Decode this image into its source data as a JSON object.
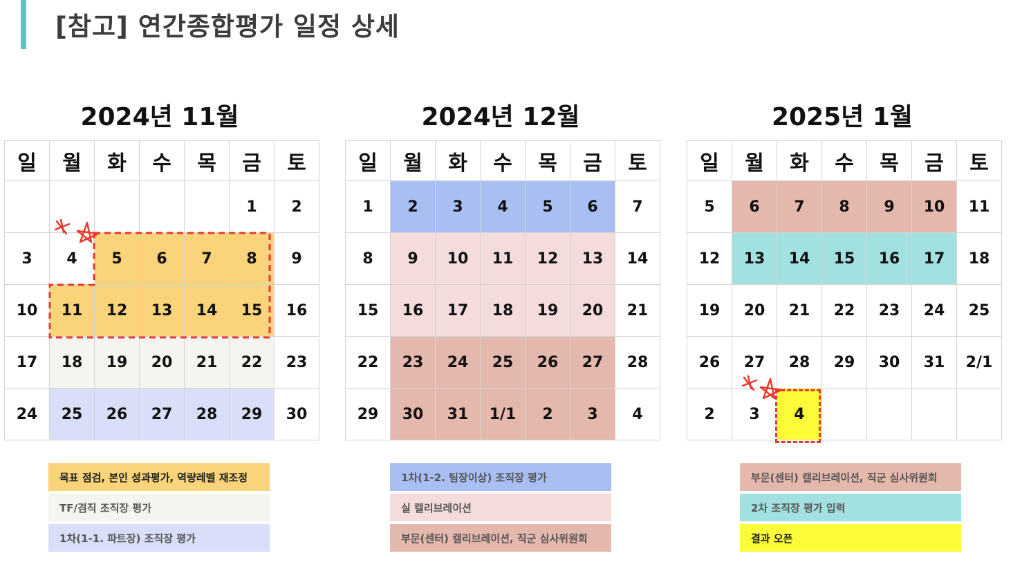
{
  "title": "[참고] 연간종합평가 일정 상세",
  "weekdays": [
    "일",
    "월",
    "화",
    "수",
    "목",
    "금",
    "토"
  ],
  "colors": {
    "yellow": "#f9d47a",
    "gray": "#f3f5ee",
    "lavender": "#d9dff8",
    "blue": "#a9bff2",
    "pink": "#f4dcdc",
    "rose": "#e5b8ad",
    "teal": "#a3e0e0",
    "bright_yellow": "#fbfb3a",
    "accent": "#5fc4bf"
  },
  "calendars": [
    {
      "title": "2024년 11월",
      "weeks": [
        [
          {
            "d": ""
          },
          {
            "d": ""
          },
          {
            "d": ""
          },
          {
            "d": ""
          },
          {
            "d": ""
          },
          {
            "d": "1"
          },
          {
            "d": "2"
          }
        ],
        [
          {
            "d": "3"
          },
          {
            "d": "4"
          },
          {
            "d": "5",
            "c": "yellow"
          },
          {
            "d": "6",
            "c": "yellow"
          },
          {
            "d": "7",
            "c": "yellow"
          },
          {
            "d": "8",
            "c": "yellow"
          },
          {
            "d": "9"
          }
        ],
        [
          {
            "d": "10"
          },
          {
            "d": "11",
            "c": "yellow"
          },
          {
            "d": "12",
            "c": "yellow"
          },
          {
            "d": "13",
            "c": "yellow"
          },
          {
            "d": "14",
            "c": "yellow"
          },
          {
            "d": "15",
            "c": "yellow"
          },
          {
            "d": "16"
          }
        ],
        [
          {
            "d": "17"
          },
          {
            "d": "18",
            "c": "gray"
          },
          {
            "d": "19",
            "c": "gray"
          },
          {
            "d": "20",
            "c": "gray"
          },
          {
            "d": "21",
            "c": "gray"
          },
          {
            "d": "22",
            "c": "gray"
          },
          {
            "d": "23"
          }
        ],
        [
          {
            "d": "24"
          },
          {
            "d": "25",
            "c": "lavender"
          },
          {
            "d": "26",
            "c": "lavender"
          },
          {
            "d": "27",
            "c": "lavender"
          },
          {
            "d": "28",
            "c": "lavender"
          },
          {
            "d": "29",
            "c": "lavender"
          },
          {
            "d": "30"
          }
        ]
      ]
    },
    {
      "title": "2024년 12월",
      "weeks": [
        [
          {
            "d": "1"
          },
          {
            "d": "2",
            "c": "blue"
          },
          {
            "d": "3",
            "c": "blue"
          },
          {
            "d": "4",
            "c": "blue"
          },
          {
            "d": "5",
            "c": "blue"
          },
          {
            "d": "6",
            "c": "blue"
          },
          {
            "d": "7"
          }
        ],
        [
          {
            "d": "8"
          },
          {
            "d": "9",
            "c": "pink"
          },
          {
            "d": "10",
            "c": "pink"
          },
          {
            "d": "11",
            "c": "pink"
          },
          {
            "d": "12",
            "c": "pink"
          },
          {
            "d": "13",
            "c": "pink"
          },
          {
            "d": "14"
          }
        ],
        [
          {
            "d": "15"
          },
          {
            "d": "16",
            "c": "pink"
          },
          {
            "d": "17",
            "c": "pink"
          },
          {
            "d": "18",
            "c": "pink"
          },
          {
            "d": "19",
            "c": "pink"
          },
          {
            "d": "20",
            "c": "pink"
          },
          {
            "d": "21"
          }
        ],
        [
          {
            "d": "22"
          },
          {
            "d": "23",
            "c": "rose"
          },
          {
            "d": "24",
            "c": "rose"
          },
          {
            "d": "25",
            "c": "rose"
          },
          {
            "d": "26",
            "c": "rose"
          },
          {
            "d": "27",
            "c": "rose"
          },
          {
            "d": "28"
          }
        ],
        [
          {
            "d": "29"
          },
          {
            "d": "30",
            "c": "rose"
          },
          {
            "d": "31",
            "c": "rose"
          },
          {
            "d": "1/1",
            "c": "rose"
          },
          {
            "d": "2",
            "c": "rose"
          },
          {
            "d": "3",
            "c": "rose"
          },
          {
            "d": "4"
          }
        ]
      ]
    },
    {
      "title": "2025년 1월",
      "weeks": [
        [
          {
            "d": "5"
          },
          {
            "d": "6",
            "c": "rose"
          },
          {
            "d": "7",
            "c": "rose"
          },
          {
            "d": "8",
            "c": "rose"
          },
          {
            "d": "9",
            "c": "rose"
          },
          {
            "d": "10",
            "c": "rose"
          },
          {
            "d": "11"
          }
        ],
        [
          {
            "d": "12"
          },
          {
            "d": "13",
            "c": "teal"
          },
          {
            "d": "14",
            "c": "teal"
          },
          {
            "d": "15",
            "c": "teal"
          },
          {
            "d": "16",
            "c": "teal"
          },
          {
            "d": "17",
            "c": "teal"
          },
          {
            "d": "18"
          }
        ],
        [
          {
            "d": "19"
          },
          {
            "d": "20"
          },
          {
            "d": "21"
          },
          {
            "d": "22"
          },
          {
            "d": "23"
          },
          {
            "d": "24"
          },
          {
            "d": "25"
          }
        ],
        [
          {
            "d": "26"
          },
          {
            "d": "27"
          },
          {
            "d": "28"
          },
          {
            "d": "29"
          },
          {
            "d": "30"
          },
          {
            "d": "31"
          },
          {
            "d": "2/1"
          }
        ],
        [
          {
            "d": "2"
          },
          {
            "d": "3"
          },
          {
            "d": "4",
            "c": "bright_yellow"
          },
          {
            "d": ""
          },
          {
            "d": ""
          },
          {
            "d": ""
          },
          {
            "d": ""
          }
        ]
      ]
    }
  ],
  "legends": [
    [
      {
        "label": "목표 점검, 본인 성과평가, 역량레벨 재조정",
        "c": "yellow",
        "text_color": "#1e1e1e"
      },
      {
        "label": "TF/겸직 조직장 평가",
        "c": "gray",
        "text_color": "#555555"
      },
      {
        "label": "1차(1-1. 파트장) 조직장 평가",
        "c": "lavender",
        "text_color": "#555555"
      }
    ],
    [
      {
        "label": "1차(1-2. 팀장이상) 조직장 평가",
        "c": "blue",
        "text_color": "#555555"
      },
      {
        "label": "실 캘리브레이션",
        "c": "pink",
        "text_color": "#555555"
      },
      {
        "label": "부문(센터) 캘리브레이션, 직군 심사위원회",
        "c": "rose",
        "text_color": "#555555"
      }
    ],
    [
      {
        "label": "부문(센터) 캘리브레이션, 직군 심사위원회",
        "c": "rose",
        "text_color": "#555555"
      },
      {
        "label": "2차 조직장 평가 입력",
        "c": "teal",
        "text_color": "#555555"
      },
      {
        "label": "결과 오픈",
        "c": "bright_yellow",
        "text_color": "#1e1e1e"
      }
    ]
  ]
}
